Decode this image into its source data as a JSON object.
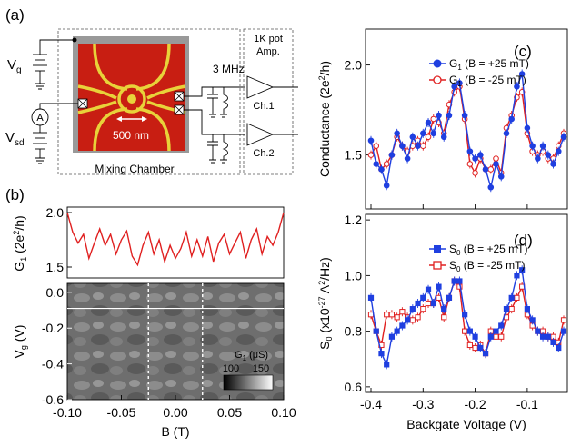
{
  "panel_a": {
    "label": "(a)",
    "vg_label": "V",
    "vg_sub": "g",
    "vsd_label": "V",
    "vsd_sub": "sd",
    "ammeter": "A",
    "freq_label": "3 MHz",
    "pot_label_1": "1K pot",
    "pot_label_2": "Amp.",
    "ch1": "Ch.1",
    "ch2": "Ch.2",
    "scale_label": "500 nm",
    "chamber_label": "Mixing Chamber",
    "colors": {
      "sample_bg": "#c81e12",
      "gates": "#e8d23a",
      "frame": "#888888"
    }
  },
  "chart_data": [
    {
      "panel": "(b)",
      "type": "line",
      "ylabel_main": "G",
      "ylabel_sub": "1",
      "ylabel_unit_pre": " (2e",
      "ylabel_sup": "2",
      "ylabel_unit_post": "/h)",
      "y_ticks": [
        "2.0",
        "1.5"
      ],
      "ylim": [
        1.4,
        2.05
      ],
      "xlim": [
        -0.1,
        0.1
      ],
      "color": "#e02020",
      "x": [
        -0.1,
        -0.095,
        -0.09,
        -0.085,
        -0.08,
        -0.075,
        -0.07,
        -0.065,
        -0.06,
        -0.055,
        -0.05,
        -0.045,
        -0.04,
        -0.035,
        -0.03,
        -0.025,
        -0.02,
        -0.015,
        -0.01,
        -0.005,
        0.0,
        0.005,
        0.01,
        0.015,
        0.02,
        0.025,
        0.03,
        0.035,
        0.04,
        0.045,
        0.05,
        0.055,
        0.06,
        0.065,
        0.07,
        0.075,
        0.08,
        0.085,
        0.09,
        0.095,
        0.1
      ],
      "y": [
        2.0,
        1.82,
        1.72,
        1.8,
        1.58,
        1.72,
        1.85,
        1.7,
        1.8,
        1.62,
        1.75,
        1.83,
        1.6,
        1.52,
        1.7,
        1.82,
        1.62,
        1.75,
        1.55,
        1.7,
        1.58,
        1.67,
        1.82,
        1.6,
        1.75,
        1.6,
        1.78,
        1.55,
        1.72,
        1.8,
        1.62,
        1.72,
        1.82,
        1.58,
        1.75,
        1.85,
        1.62,
        1.78,
        1.7,
        1.82,
        2.0
      ]
    },
    {
      "panel": "(b)",
      "type": "heatmap",
      "ylabel_main": "V",
      "ylabel_sub": "g",
      "ylabel_unit": " (V)",
      "xlabel": "B (T)",
      "x_ticks": [
        "-0.10",
        "-0.05",
        "0.00",
        "0.05",
        "0.10"
      ],
      "y_ticks": [
        "0.0",
        "-0.2",
        "-0.4",
        "-0.6"
      ],
      "xlim": [
        -0.1,
        0.1
      ],
      "ylim": [
        -0.6,
        0.05
      ],
      "colorbar_label_main": "G",
      "colorbar_label_sub": "1",
      "colorbar_label_unit": " (μS)",
      "colorbar_ticks": [
        "100",
        "150"
      ],
      "white_line_vg": -0.09,
      "dashed_lines_b": [
        -0.025,
        0.025
      ]
    },
    {
      "panel": "(c)",
      "type": "line",
      "ylabel": "Conductance (2e",
      "ylabel_sup": "2",
      "ylabel_post": "/h)",
      "y_ticks": [
        "2.0",
        "1.5"
      ],
      "ylim": [
        1.2,
        2.2
      ],
      "xlim": [
        -0.4,
        -0.03
      ],
      "series": [
        {
          "name_main": "G",
          "name_sub": "1",
          "name_cond": " (B = +25 mT)",
          "color": "#1f3fe0",
          "marker": "filled-circle",
          "x": [
            -0.4,
            -0.39,
            -0.38,
            -0.37,
            -0.36,
            -0.35,
            -0.34,
            -0.33,
            -0.32,
            -0.31,
            -0.3,
            -0.29,
            -0.28,
            -0.27,
            -0.26,
            -0.25,
            -0.24,
            -0.23,
            -0.22,
            -0.21,
            -0.2,
            -0.19,
            -0.18,
            -0.17,
            -0.16,
            -0.15,
            -0.14,
            -0.13,
            -0.12,
            -0.11,
            -0.1,
            -0.09,
            -0.08,
            -0.07,
            -0.06,
            -0.05,
            -0.04,
            -0.03
          ],
          "y": [
            1.58,
            1.45,
            1.42,
            1.33,
            1.5,
            1.62,
            1.55,
            1.48,
            1.6,
            1.55,
            1.62,
            1.68,
            1.62,
            1.72,
            1.6,
            1.72,
            1.88,
            1.9,
            1.72,
            1.52,
            1.48,
            1.5,
            1.42,
            1.32,
            1.45,
            1.38,
            1.62,
            1.7,
            1.88,
            1.95,
            1.65,
            1.55,
            1.48,
            1.55,
            1.5,
            1.45,
            1.52,
            1.6
          ]
        },
        {
          "name_main": "G",
          "name_sub": "1",
          "name_cond": " (B = -25 mT)",
          "color": "#e02020",
          "marker": "open-circle",
          "x": [
            -0.4,
            -0.39,
            -0.38,
            -0.37,
            -0.36,
            -0.35,
            -0.34,
            -0.33,
            -0.32,
            -0.31,
            -0.3,
            -0.29,
            -0.28,
            -0.27,
            -0.26,
            -0.25,
            -0.24,
            -0.23,
            -0.22,
            -0.21,
            -0.2,
            -0.19,
            -0.18,
            -0.17,
            -0.16,
            -0.15,
            -0.14,
            -0.13,
            -0.12,
            -0.11,
            -0.1,
            -0.09,
            -0.08,
            -0.07,
            -0.06,
            -0.05,
            -0.04,
            -0.03
          ],
          "y": [
            1.5,
            1.55,
            1.42,
            1.45,
            1.5,
            1.6,
            1.55,
            1.52,
            1.55,
            1.58,
            1.55,
            1.6,
            1.7,
            1.68,
            1.62,
            1.78,
            1.85,
            1.88,
            1.7,
            1.45,
            1.4,
            1.48,
            1.42,
            1.42,
            1.48,
            1.4,
            1.65,
            1.72,
            1.82,
            1.85,
            1.62,
            1.52,
            1.5,
            1.52,
            1.48,
            1.48,
            1.55,
            1.62
          ]
        }
      ]
    },
    {
      "panel": "(d)",
      "type": "line",
      "ylabel": "S",
      "ylabel_sub": "0",
      "ylabel_unit": " (x10",
      "ylabel_sup": "-27",
      "ylabel_post": " A",
      "ylabel_sup2": "2",
      "ylabel_tail": "/Hz)",
      "xlabel": "Backgate Voltage (V)",
      "x_ticks": [
        "-0.4",
        "-0.3",
        "-0.2",
        "-0.1"
      ],
      "y_ticks": [
        "1.2",
        "1.0",
        "0.8",
        "0.6"
      ],
      "ylim": [
        0.58,
        1.22
      ],
      "xlim": [
        -0.4,
        -0.03
      ],
      "series": [
        {
          "name_main": "S",
          "name_sub": "0",
          "name_cond": " (B = +25 mT)",
          "color": "#1f3fe0",
          "marker": "filled-square",
          "x": [
            -0.4,
            -0.39,
            -0.38,
            -0.37,
            -0.36,
            -0.35,
            -0.34,
            -0.33,
            -0.32,
            -0.31,
            -0.3,
            -0.29,
            -0.28,
            -0.27,
            -0.26,
            -0.25,
            -0.24,
            -0.23,
            -0.22,
            -0.21,
            -0.2,
            -0.19,
            -0.18,
            -0.17,
            -0.16,
            -0.15,
            -0.14,
            -0.13,
            -0.12,
            -0.11,
            -0.1,
            -0.09,
            -0.08,
            -0.07,
            -0.06,
            -0.05,
            -0.04,
            -0.03
          ],
          "y": [
            0.92,
            0.8,
            0.72,
            0.68,
            0.78,
            0.8,
            0.82,
            0.84,
            0.88,
            0.9,
            0.92,
            0.95,
            0.9,
            0.96,
            0.88,
            0.92,
            0.98,
            0.98,
            0.86,
            0.8,
            0.78,
            0.74,
            0.72,
            0.78,
            0.8,
            0.82,
            0.88,
            0.92,
            1.0,
            1.02,
            0.88,
            0.84,
            0.8,
            0.78,
            0.78,
            0.76,
            0.74,
            0.8
          ]
        },
        {
          "name_main": "S",
          "name_sub": "0",
          "name_cond": " (B = -25 mT)",
          "color": "#e02020",
          "marker": "open-square",
          "x": [
            -0.4,
            -0.39,
            -0.38,
            -0.37,
            -0.36,
            -0.35,
            -0.34,
            -0.33,
            -0.32,
            -0.31,
            -0.3,
            -0.29,
            -0.28,
            -0.27,
            -0.26,
            -0.25,
            -0.24,
            -0.23,
            -0.22,
            -0.21,
            -0.2,
            -0.19,
            -0.18,
            -0.17,
            -0.16,
            -0.15,
            -0.14,
            -0.13,
            -0.12,
            -0.11,
            -0.1,
            -0.09,
            -0.08,
            -0.07,
            -0.06,
            -0.05,
            -0.04,
            -0.03
          ],
          "y": [
            0.86,
            0.8,
            0.75,
            0.86,
            0.86,
            0.85,
            0.87,
            0.85,
            0.84,
            0.85,
            0.88,
            0.9,
            0.9,
            0.92,
            0.85,
            0.92,
            0.98,
            0.96,
            0.8,
            0.75,
            0.74,
            0.75,
            0.72,
            0.8,
            0.78,
            0.78,
            0.85,
            0.88,
            0.92,
            0.96,
            0.86,
            0.82,
            0.8,
            0.8,
            0.78,
            0.78,
            0.76,
            0.84
          ]
        }
      ]
    }
  ]
}
